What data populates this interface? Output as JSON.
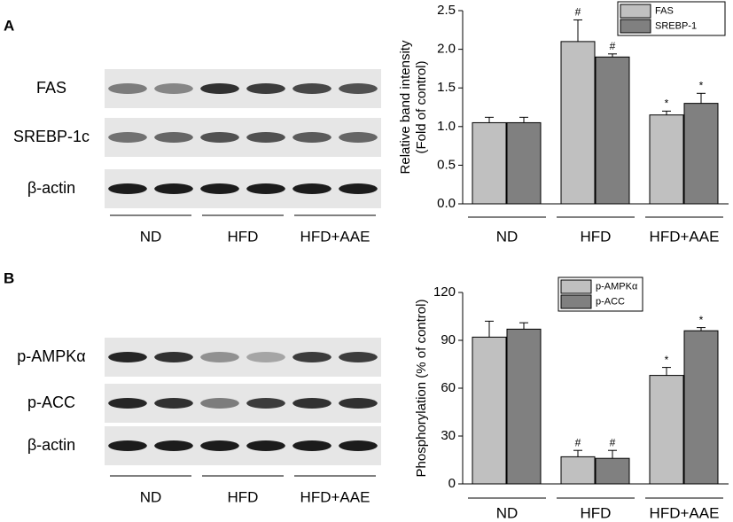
{
  "chart_data": [
    {
      "type": "bar",
      "panel_label": "A",
      "blot_rows": [
        "FAS",
        "SREBP-1c",
        "β-actin"
      ],
      "blot_groups": [
        "ND",
        "HFD",
        "HFD+AAE"
      ],
      "ylabel": [
        "Relative band intensity",
        "(Fold of control)"
      ],
      "categories": [
        "ND",
        "HFD",
        "HFD+AAE"
      ],
      "series": [
        {
          "name": "FAS",
          "color": "#c0c0c0",
          "values": [
            1.05,
            2.1,
            1.15
          ],
          "errors": [
            0.07,
            0.28,
            0.05
          ],
          "annotations": [
            null,
            "#",
            "*"
          ]
        },
        {
          "name": "SREBP-1",
          "color": "#808080",
          "values": [
            1.05,
            1.9,
            1.3
          ],
          "errors": [
            0.07,
            0.04,
            0.13
          ],
          "annotations": [
            null,
            "#",
            "*"
          ]
        }
      ],
      "ylim": [
        0,
        2.5
      ],
      "yticks": [
        {
          "value": 0,
          "label": "0.0"
        },
        0.5,
        {
          "value": 1,
          "label": "1.0"
        },
        1.5,
        {
          "value": 2,
          "label": "2.0"
        },
        2.5
      ],
      "legend": "upper right"
    },
    {
      "type": "bar",
      "panel_label": "B",
      "blot_rows": [
        "p-AMPKα",
        "p-ACC",
        "β-actin"
      ],
      "blot_groups": [
        "ND",
        "HFD",
        "HFD+AAE"
      ],
      "ylabel": [
        "Phosphorylation (% of control)"
      ],
      "categories": [
        "ND",
        "HFD",
        "HFD+AAE"
      ],
      "series": [
        {
          "name": "p-AMPKα",
          "color": "#c0c0c0",
          "values": [
            92,
            17,
            68
          ],
          "errors": [
            10,
            4,
            5
          ],
          "annotations": [
            null,
            "#",
            "*"
          ]
        },
        {
          "name": "p-ACC",
          "color": "#808080",
          "values": [
            97,
            16,
            96
          ],
          "errors": [
            4,
            5,
            2
          ],
          "annotations": [
            null,
            "#",
            "*"
          ]
        }
      ],
      "ylim": [
        0,
        120
      ],
      "yticks": [
        0,
        30,
        60,
        90,
        120
      ],
      "legend": "upper center"
    }
  ]
}
